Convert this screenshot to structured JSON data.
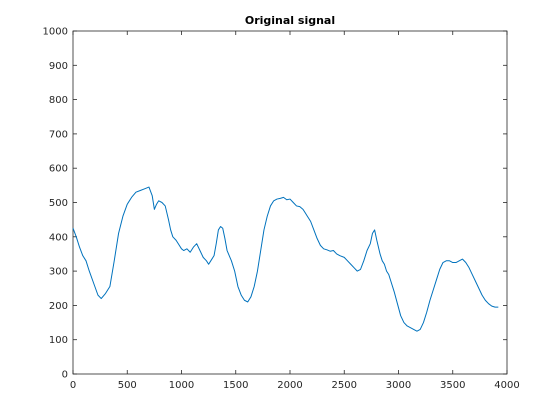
{
  "chart_data": {
    "type": "line",
    "title": "Original signal",
    "xlabel": "",
    "ylabel": "",
    "xlim": [
      0,
      4000
    ],
    "ylim": [
      0,
      1000
    ],
    "xticks": [
      0,
      500,
      1000,
      1500,
      2000,
      2500,
      3000,
      3500,
      4000
    ],
    "yticks": [
      0,
      100,
      200,
      300,
      400,
      500,
      600,
      700,
      800,
      900,
      1000
    ],
    "grid": false,
    "box": true,
    "colors": {
      "line": "#0072bd",
      "axes": "#262626"
    },
    "series": [
      {
        "name": "",
        "x": [
          0,
          30,
          60,
          90,
          120,
          150,
          190,
          230,
          260,
          300,
          340,
          380,
          420,
          460,
          500,
          540,
          580,
          620,
          660,
          700,
          730,
          750,
          770,
          790,
          820,
          850,
          880,
          900,
          920,
          950,
          980,
          1000,
          1020,
          1050,
          1080,
          1110,
          1140,
          1170,
          1200,
          1230,
          1250,
          1270,
          1300,
          1320,
          1340,
          1360,
          1380,
          1400,
          1420,
          1440,
          1460,
          1490,
          1520,
          1550,
          1580,
          1610,
          1640,
          1670,
          1700,
          1730,
          1760,
          1790,
          1820,
          1850,
          1880,
          1910,
          1940,
          1970,
          2000,
          2030,
          2060,
          2090,
          2120,
          2140,
          2160,
          2190,
          2220,
          2250,
          2280,
          2310,
          2340,
          2370,
          2400,
          2430,
          2460,
          2500,
          2530,
          2560,
          2590,
          2620,
          2650,
          2680,
          2710,
          2740,
          2760,
          2780,
          2800,
          2830,
          2850,
          2870,
          2890,
          2910,
          2930,
          2960,
          2990,
          3020,
          3050,
          3080,
          3110,
          3140,
          3170,
          3200,
          3230,
          3260,
          3290,
          3320,
          3350,
          3380,
          3410,
          3440,
          3470,
          3500,
          3530,
          3560,
          3590,
          3620,
          3650,
          3680,
          3710,
          3740,
          3770,
          3800,
          3830,
          3860,
          3890,
          3920
        ],
        "y": [
          425,
          400,
          370,
          345,
          330,
          300,
          265,
          230,
          220,
          235,
          255,
          330,
          410,
          460,
          495,
          515,
          530,
          535,
          540,
          545,
          520,
          480,
          495,
          505,
          500,
          490,
          450,
          420,
          400,
          390,
          375,
          365,
          360,
          365,
          355,
          370,
          380,
          360,
          340,
          330,
          320,
          330,
          345,
          380,
          420,
          430,
          425,
          395,
          360,
          345,
          330,
          300,
          255,
          230,
          215,
          210,
          225,
          255,
          300,
          360,
          420,
          460,
          490,
          505,
          510,
          512,
          515,
          508,
          510,
          500,
          490,
          488,
          480,
          470,
          460,
          445,
          420,
          395,
          375,
          365,
          362,
          358,
          360,
          350,
          345,
          340,
          330,
          320,
          310,
          300,
          305,
          330,
          360,
          380,
          410,
          420,
          390,
          350,
          330,
          320,
          300,
          290,
          270,
          240,
          205,
          170,
          150,
          140,
          135,
          130,
          125,
          130,
          150,
          180,
          215,
          245,
          275,
          305,
          325,
          330,
          330,
          325,
          325,
          330,
          335,
          325,
          310,
          290,
          270,
          250,
          230,
          215,
          205,
          198,
          195,
          195
        ]
      }
    ]
  }
}
